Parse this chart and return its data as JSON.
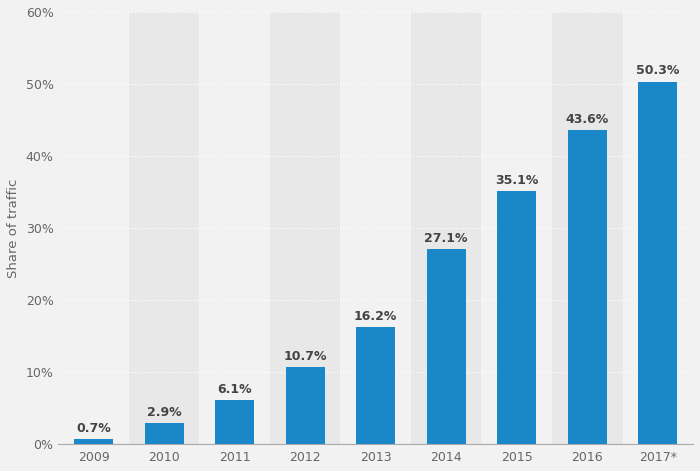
{
  "years": [
    "2009",
    "2010",
    "2011",
    "2012",
    "2013",
    "2014",
    "2015",
    "2016",
    "2017*"
  ],
  "values": [
    0.7,
    2.9,
    6.1,
    10.7,
    16.2,
    27.1,
    35.1,
    43.6,
    50.3
  ],
  "labels": [
    "0.7%",
    "2.9%",
    "6.1%",
    "10.7%",
    "16.2%",
    "27.1%",
    "35.1%",
    "43.6%",
    "50.3%"
  ],
  "bar_color": "#1a87c9",
  "background_color": "#f2f2f2",
  "col_bg_even": "#e8e8e8",
  "col_bg_odd": "#f2f2f2",
  "ylabel": "Share of traffic",
  "ylim": [
    0,
    60
  ],
  "yticks": [
    0,
    10,
    20,
    30,
    40,
    50,
    60
  ],
  "ytick_labels": [
    "0%",
    "10%",
    "20%",
    "30%",
    "40%",
    "50%",
    "60%"
  ],
  "grid_color": "#ffffff",
  "label_fontsize": 9,
  "tick_fontsize": 9,
  "ylabel_fontsize": 9.5,
  "bar_width": 0.55
}
